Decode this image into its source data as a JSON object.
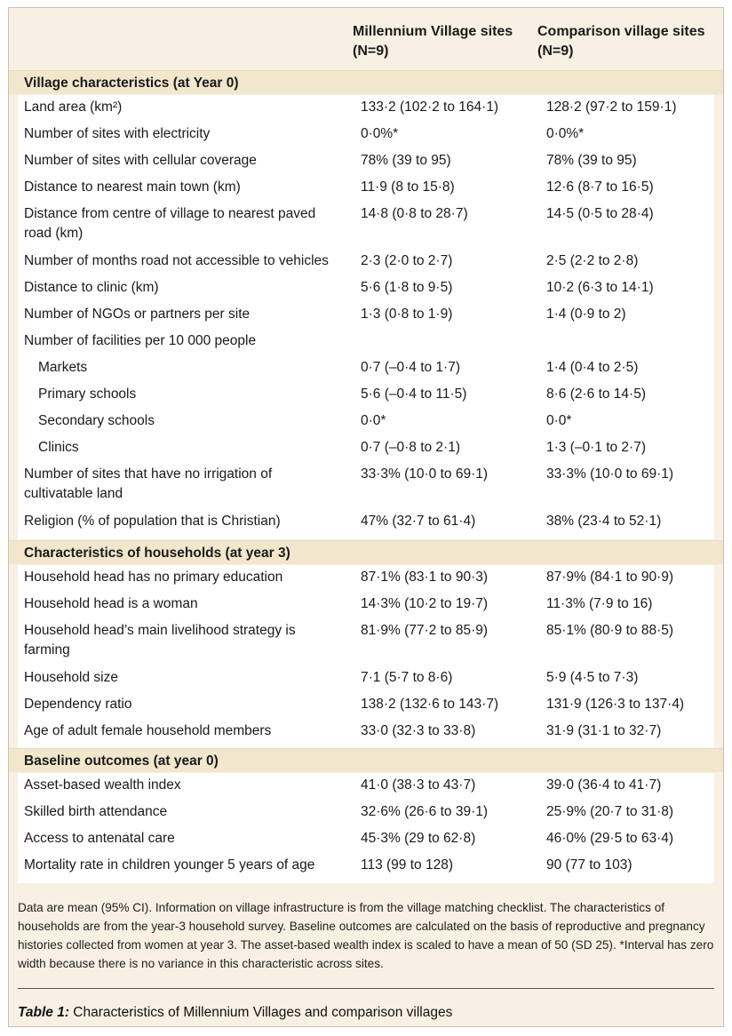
{
  "header": {
    "col1_line1": "Millennium Village sites",
    "col1_line2": "(N=9)",
    "col2_line1": "Comparison village sites",
    "col2_line2": "(N=9)"
  },
  "sections": [
    {
      "title": "Village characteristics (at Year 0)",
      "rows": [
        {
          "label": "Land area (km²)",
          "mv": "133·2 (102·2 to 164·1)",
          "cv": "128·2 (97·2 to 159·1)"
        },
        {
          "label": "Number of sites with electricity",
          "mv": "0·0%*",
          "cv": "0·0%*"
        },
        {
          "label": "Number of sites with cellular coverage",
          "mv": "78% (39 to 95)",
          "cv": "78% (39 to 95)"
        },
        {
          "label": "Distance to nearest main town (km)",
          "mv": "11·9 (8 to 15·8)",
          "cv": "12·6 (8·7 to 16·5)"
        },
        {
          "label": "Distance from centre of village to nearest paved road (km)",
          "mv": "14·8 (0·8 to 28·7)",
          "cv": "14·5 (0·5 to 28·4)"
        },
        {
          "label": "Number of months road not accessible to vehicles",
          "mv": "2·3 (2·0 to 2·7)",
          "cv": "2·5 (2·2 to 2·8)"
        },
        {
          "label": "Distance to clinic (km)",
          "mv": "5·6 (1·8 to 9·5)",
          "cv": "10·2 (6·3 to 14·1)"
        },
        {
          "label": "Number of NGOs or partners per site",
          "mv": "1·3 (0·8 to 1·9)",
          "cv": "1·4 (0·9 to 2)"
        },
        {
          "label": "Number of facilities per 10 000 people",
          "mv": "",
          "cv": ""
        },
        {
          "label": "Markets",
          "mv": "0·7 (–0·4 to 1·7)",
          "cv": "1·4 (0·4 to 2·5)",
          "indent": true
        },
        {
          "label": "Primary schools",
          "mv": "5·6 (–0·4 to 11·5)",
          "cv": "8·6 (2·6 to 14·5)",
          "indent": true
        },
        {
          "label": "Secondary schools",
          "mv": "0·0*",
          "cv": "0·0*",
          "indent": true
        },
        {
          "label": "Clinics",
          "mv": "0·7 (–0·8 to 2·1)",
          "cv": "1·3 (–0·1 to 2·7)",
          "indent": true
        },
        {
          "label": "Number of sites that have no irrigation of cultivatable land",
          "mv": "33·3% (10·0 to 69·1)",
          "cv": "33·3% (10·0 to 69·1)"
        },
        {
          "label": "Religion (% of population that is Christian)",
          "mv": "47% (32·7 to 61·4)",
          "cv": "38% (23·4 to 52·1)"
        }
      ]
    },
    {
      "title": "Characteristics of households (at year 3)",
      "rows": [
        {
          "label": "Household head has no primary education",
          "mv": "87·1% (83·1 to 90·3)",
          "cv": "87·9% (84·1 to 90·9)"
        },
        {
          "label": "Household head is a woman",
          "mv": "14·3% (10·2 to 19·7)",
          "cv": "11·3% (7·9 to 16)"
        },
        {
          "label": "Household head’s main livelihood strategy is farming",
          "mv": "81·9% (77·2 to 85·9)",
          "cv": "85·1% (80·9 to 88·5)"
        },
        {
          "label": "Household size",
          "mv": "7·1 (5·7 to 8·6)",
          "cv": "5·9 (4·5 to 7·3)"
        },
        {
          "label": "Dependency ratio",
          "mv": "138·2 (132·6 to 143·7)",
          "cv": "131·9 (126·3 to 137·4)"
        },
        {
          "label": "Age of adult female household members",
          "mv": "33·0 (32·3 to 33·8)",
          "cv": "31·9 (31·1 to 32·7)"
        }
      ]
    },
    {
      "title": "Baseline outcomes (at year 0)",
      "rows": [
        {
          "label": "Asset-based wealth index",
          "mv": "41·0 (38·3 to 43·7)",
          "cv": "39·0 (36·4 to 41·7)"
        },
        {
          "label": "Skilled birth attendance",
          "mv": "32·6% (26·6 to 39·1)",
          "cv": "25·9% (20·7 to 31·8)"
        },
        {
          "label": "Access to antenatal care",
          "mv": "45·3% (29 to 62·8)",
          "cv": "46·0% (29·5 to 63·4)"
        },
        {
          "label": "Mortality rate in children younger 5 years of age",
          "mv": "113 (99 to 128)",
          "cv": "90 (77 to 103)"
        }
      ]
    }
  ],
  "footnote": "Data are mean (95% CI). Information on village infrastructure is from the village matching checklist. The characteristics of households are from the year-3 household survey. Baseline outcomes are calculated on the basis of reproductive and pregnancy histories collected from women at year 3. The asset-based wealth index is scaled to have a mean of 50 (SD 25). *Interval has zero width because there is no variance in this characteristic across sites.",
  "caption": {
    "label": "Table 1:",
    "text": " Characteristics of Millennium Villages and comparison villages"
  }
}
